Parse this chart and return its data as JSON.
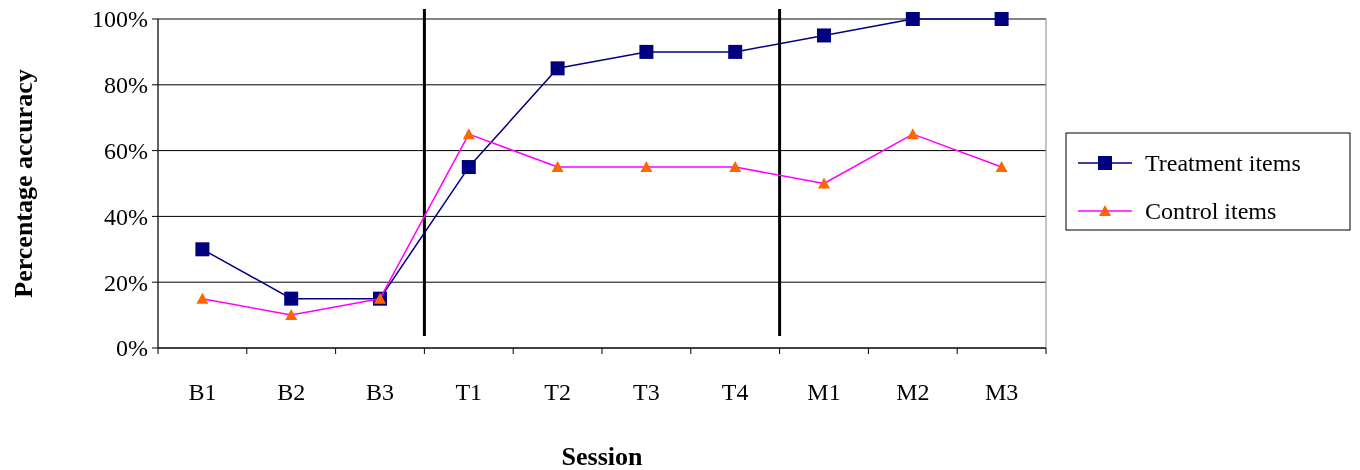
{
  "chart_data": {
    "type": "line",
    "xlabel": "Session",
    "ylabel": "Percentage accuracy",
    "categories": [
      "B1",
      "B2",
      "B3",
      "T1",
      "T2",
      "T3",
      "T4",
      "M1",
      "M2",
      "M3"
    ],
    "series": [
      {
        "name": "Treatment items",
        "color": "#000080",
        "marker": "square",
        "values": [
          30,
          15,
          15,
          55,
          85,
          90,
          90,
          95,
          100,
          100
        ]
      },
      {
        "name": "Control items",
        "color": "#ff00ff",
        "marker": "triangle",
        "colors": [
          "#ff6600",
          "#ff6600",
          "#ff6600",
          "#ff6600",
          "#ff6600",
          "#ff6600",
          "#ff6600",
          "#ff6600",
          "#ff6600",
          "#ff6600"
        ],
        "values": [
          15,
          10,
          15,
          65,
          55,
          55,
          55,
          50,
          65,
          55
        ]
      }
    ],
    "ylim": [
      0,
      100
    ],
    "yticks": [
      {
        "value": 0,
        "label": "0%"
      },
      {
        "value": 20,
        "label": "20%"
      },
      {
        "value": 40,
        "label": "40%"
      },
      {
        "value": 60,
        "label": "60%"
      },
      {
        "value": 80,
        "label": "80%"
      },
      {
        "value": 100,
        "label": "100%"
      }
    ],
    "grid": "y",
    "legend": "right"
  }
}
